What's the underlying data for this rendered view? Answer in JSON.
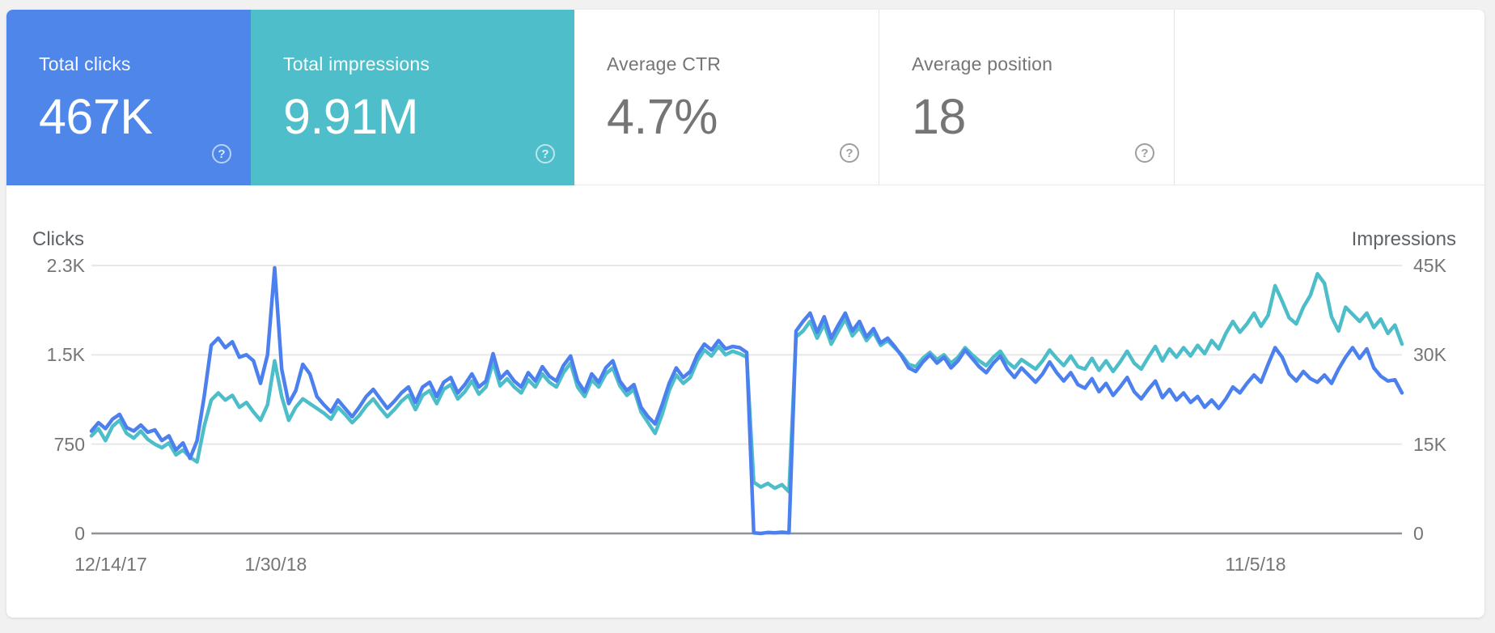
{
  "ui": {
    "help_glyph": "?"
  },
  "metric_tiles": [
    {
      "label": "Total clicks",
      "value": "467K",
      "selected": true,
      "color": "#4e86e9"
    },
    {
      "label": "Total impressions",
      "value": "9.91M",
      "selected": true,
      "color": "#4fbecb"
    },
    {
      "label": "Average CTR",
      "value": "4.7%",
      "selected": false,
      "color": "#ffffff"
    },
    {
      "label": "Average position",
      "value": "18",
      "selected": false,
      "color": "#ffffff"
    }
  ],
  "chart_data": {
    "type": "line",
    "grid": "horizontal-only",
    "colors": {
      "clicks_line": "#4c80ee",
      "impressions_line": "#4cbdc9",
      "gridline": "#e8e8e8",
      "zero_line": "#8f9398"
    },
    "left_axis": {
      "title": "Clicks",
      "tick_values": [
        0,
        750,
        1500,
        2250
      ],
      "tick_labels": [
        "0",
        "750",
        "1.5K",
        "2.3K"
      ],
      "max": 2250
    },
    "right_axis": {
      "title": "Impressions",
      "tick_values": [
        0,
        15000,
        30000,
        45000
      ],
      "tick_labels": [
        "0",
        "15K",
        "30K",
        "45K"
      ],
      "max": 45000
    },
    "x_ticks": [
      {
        "label": "12/14/17",
        "pos": 0.0148
      },
      {
        "label": "1/30/18",
        "pos": 0.1407
      },
      {
        "label": "11/5/18",
        "pos": 0.8883
      }
    ],
    "series": [
      {
        "name": "Clicks",
        "axis": "left",
        "color": "#4c80ee",
        "values": [
          860,
          930,
          880,
          960,
          1000,
          890,
          860,
          910,
          850,
          870,
          780,
          820,
          700,
          760,
          630,
          780,
          1150,
          1580,
          1640,
          1560,
          1610,
          1480,
          1500,
          1450,
          1260,
          1500,
          2230,
          1380,
          1090,
          1200,
          1420,
          1340,
          1150,
          1080,
          1020,
          1120,
          1050,
          980,
          1060,
          1150,
          1210,
          1130,
          1050,
          1110,
          1180,
          1230,
          1100,
          1230,
          1270,
          1150,
          1270,
          1310,
          1180,
          1250,
          1340,
          1230,
          1280,
          1510,
          1300,
          1360,
          1280,
          1230,
          1350,
          1280,
          1400,
          1320,
          1280,
          1410,
          1490,
          1280,
          1190,
          1340,
          1270,
          1390,
          1450,
          1280,
          1200,
          1250,
          1060,
          980,
          920,
          1080,
          1260,
          1390,
          1310,
          1360,
          1500,
          1590,
          1540,
          1620,
          1550,
          1570,
          1560,
          1520,
          5,
          0,
          8,
          5,
          10,
          5,
          1700,
          1780,
          1850,
          1690,
          1820,
          1640,
          1750,
          1850,
          1700,
          1780,
          1650,
          1720,
          1600,
          1640,
          1570,
          1490,
          1390,
          1360,
          1440,
          1500,
          1430,
          1480,
          1390,
          1450,
          1540,
          1470,
          1400,
          1350,
          1430,
          1490,
          1380,
          1310,
          1390,
          1330,
          1270,
          1340,
          1440,
          1350,
          1280,
          1350,
          1250,
          1220,
          1300,
          1190,
          1260,
          1160,
          1230,
          1310,
          1190,
          1130,
          1210,
          1280,
          1140,
          1210,
          1120,
          1180,
          1100,
          1150,
          1060,
          1120,
          1050,
          1130,
          1230,
          1180,
          1260,
          1330,
          1270,
          1420,
          1560,
          1480,
          1340,
          1280,
          1360,
          1300,
          1270,
          1330,
          1260,
          1380,
          1480,
          1560,
          1470,
          1550,
          1390,
          1320,
          1280,
          1290,
          1180
        ]
      },
      {
        "name": "Impressions",
        "axis": "right",
        "color": "#4cbdc9",
        "values": [
          16400,
          17600,
          15600,
          18000,
          19000,
          16800,
          16000,
          17200,
          15800,
          15000,
          14400,
          15200,
          13200,
          14000,
          12800,
          12000,
          18000,
          22400,
          23600,
          22400,
          23200,
          21200,
          22000,
          20400,
          19000,
          21600,
          29000,
          23000,
          19000,
          21200,
          22600,
          21800,
          21000,
          20200,
          19200,
          21200,
          20000,
          18600,
          19800,
          21400,
          22600,
          21000,
          19600,
          20800,
          22200,
          23200,
          20800,
          23200,
          24000,
          21800,
          24200,
          25000,
          22600,
          23800,
          25600,
          23400,
          24600,
          28800,
          24800,
          26000,
          24600,
          23600,
          25800,
          24600,
          26800,
          25400,
          24600,
          27000,
          28600,
          24600,
          23000,
          25800,
          24600,
          26800,
          27800,
          24800,
          23200,
          24200,
          20400,
          18600,
          16800,
          20000,
          24000,
          26600,
          25200,
          26200,
          29000,
          30800,
          29800,
          31400,
          30000,
          30600,
          30200,
          29600,
          8600,
          7800,
          8400,
          7600,
          8200,
          7000,
          33000,
          34000,
          35600,
          32800,
          35200,
          31800,
          34000,
          36000,
          33200,
          34600,
          32400,
          33800,
          31600,
          32400,
          31200,
          30000,
          28400,
          28000,
          29400,
          30400,
          29200,
          30000,
          28600,
          29600,
          31200,
          30000,
          29000,
          28200,
          29600,
          30600,
          28800,
          27800,
          29200,
          28400,
          27600,
          29000,
          30800,
          29400,
          28200,
          29800,
          28000,
          27600,
          29400,
          27400,
          29000,
          27200,
          28800,
          30600,
          28600,
          27600,
          29600,
          31400,
          29000,
          31000,
          29600,
          31200,
          29800,
          31600,
          30200,
          32400,
          31000,
          33600,
          35600,
          33800,
          35200,
          37000,
          34800,
          36600,
          41600,
          39000,
          36200,
          35200,
          38000,
          40000,
          43600,
          42000,
          36400,
          34000,
          38000,
          36800,
          35600,
          37000,
          34600,
          36000,
          33600,
          35000,
          31800
        ]
      }
    ]
  }
}
